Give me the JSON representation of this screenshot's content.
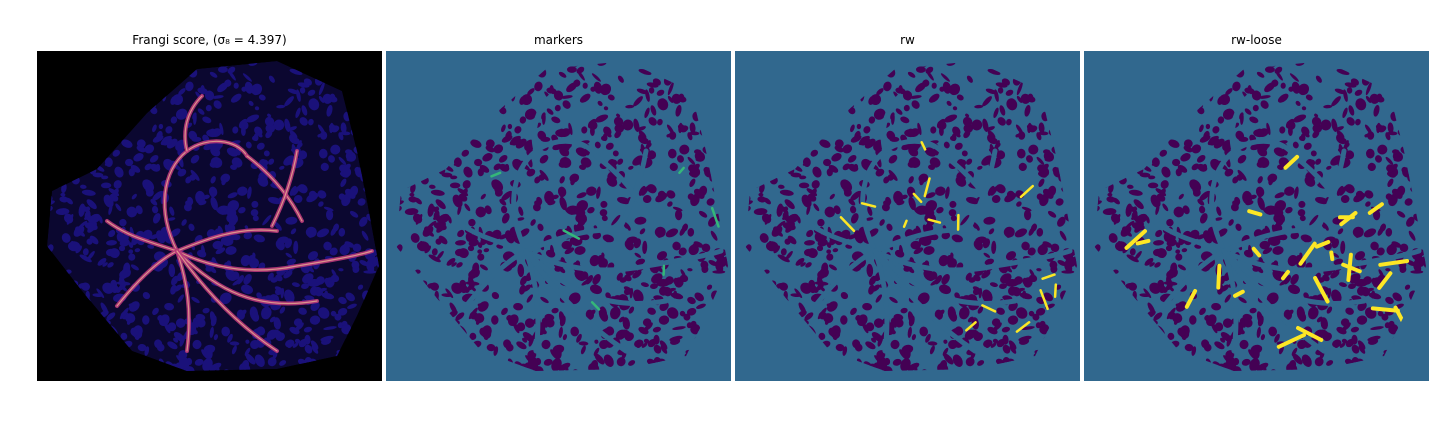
{
  "panels": [
    {
      "title": "Frangi score, (σ₈ = 4.397)",
      "kind": "frangi",
      "colormap": "magma",
      "background": "#000000",
      "blob": "#1a117a",
      "vessel": "#b73779",
      "highlight": "#fdd59b"
    },
    {
      "title": "markers",
      "kind": "markers",
      "colormap": "viridis",
      "background": "#31688e",
      "blob": "#440154",
      "accent": "#35b779"
    },
    {
      "title": "rw",
      "kind": "rw",
      "colormap": "viridis",
      "background": "#31688e",
      "blob": "#440154",
      "accent": "#fde725"
    },
    {
      "title": "rw-loose",
      "kind": "rw-loose",
      "colormap": "viridis",
      "background": "#31688e",
      "blob": "#440154",
      "accent": "#fde725"
    }
  ]
}
